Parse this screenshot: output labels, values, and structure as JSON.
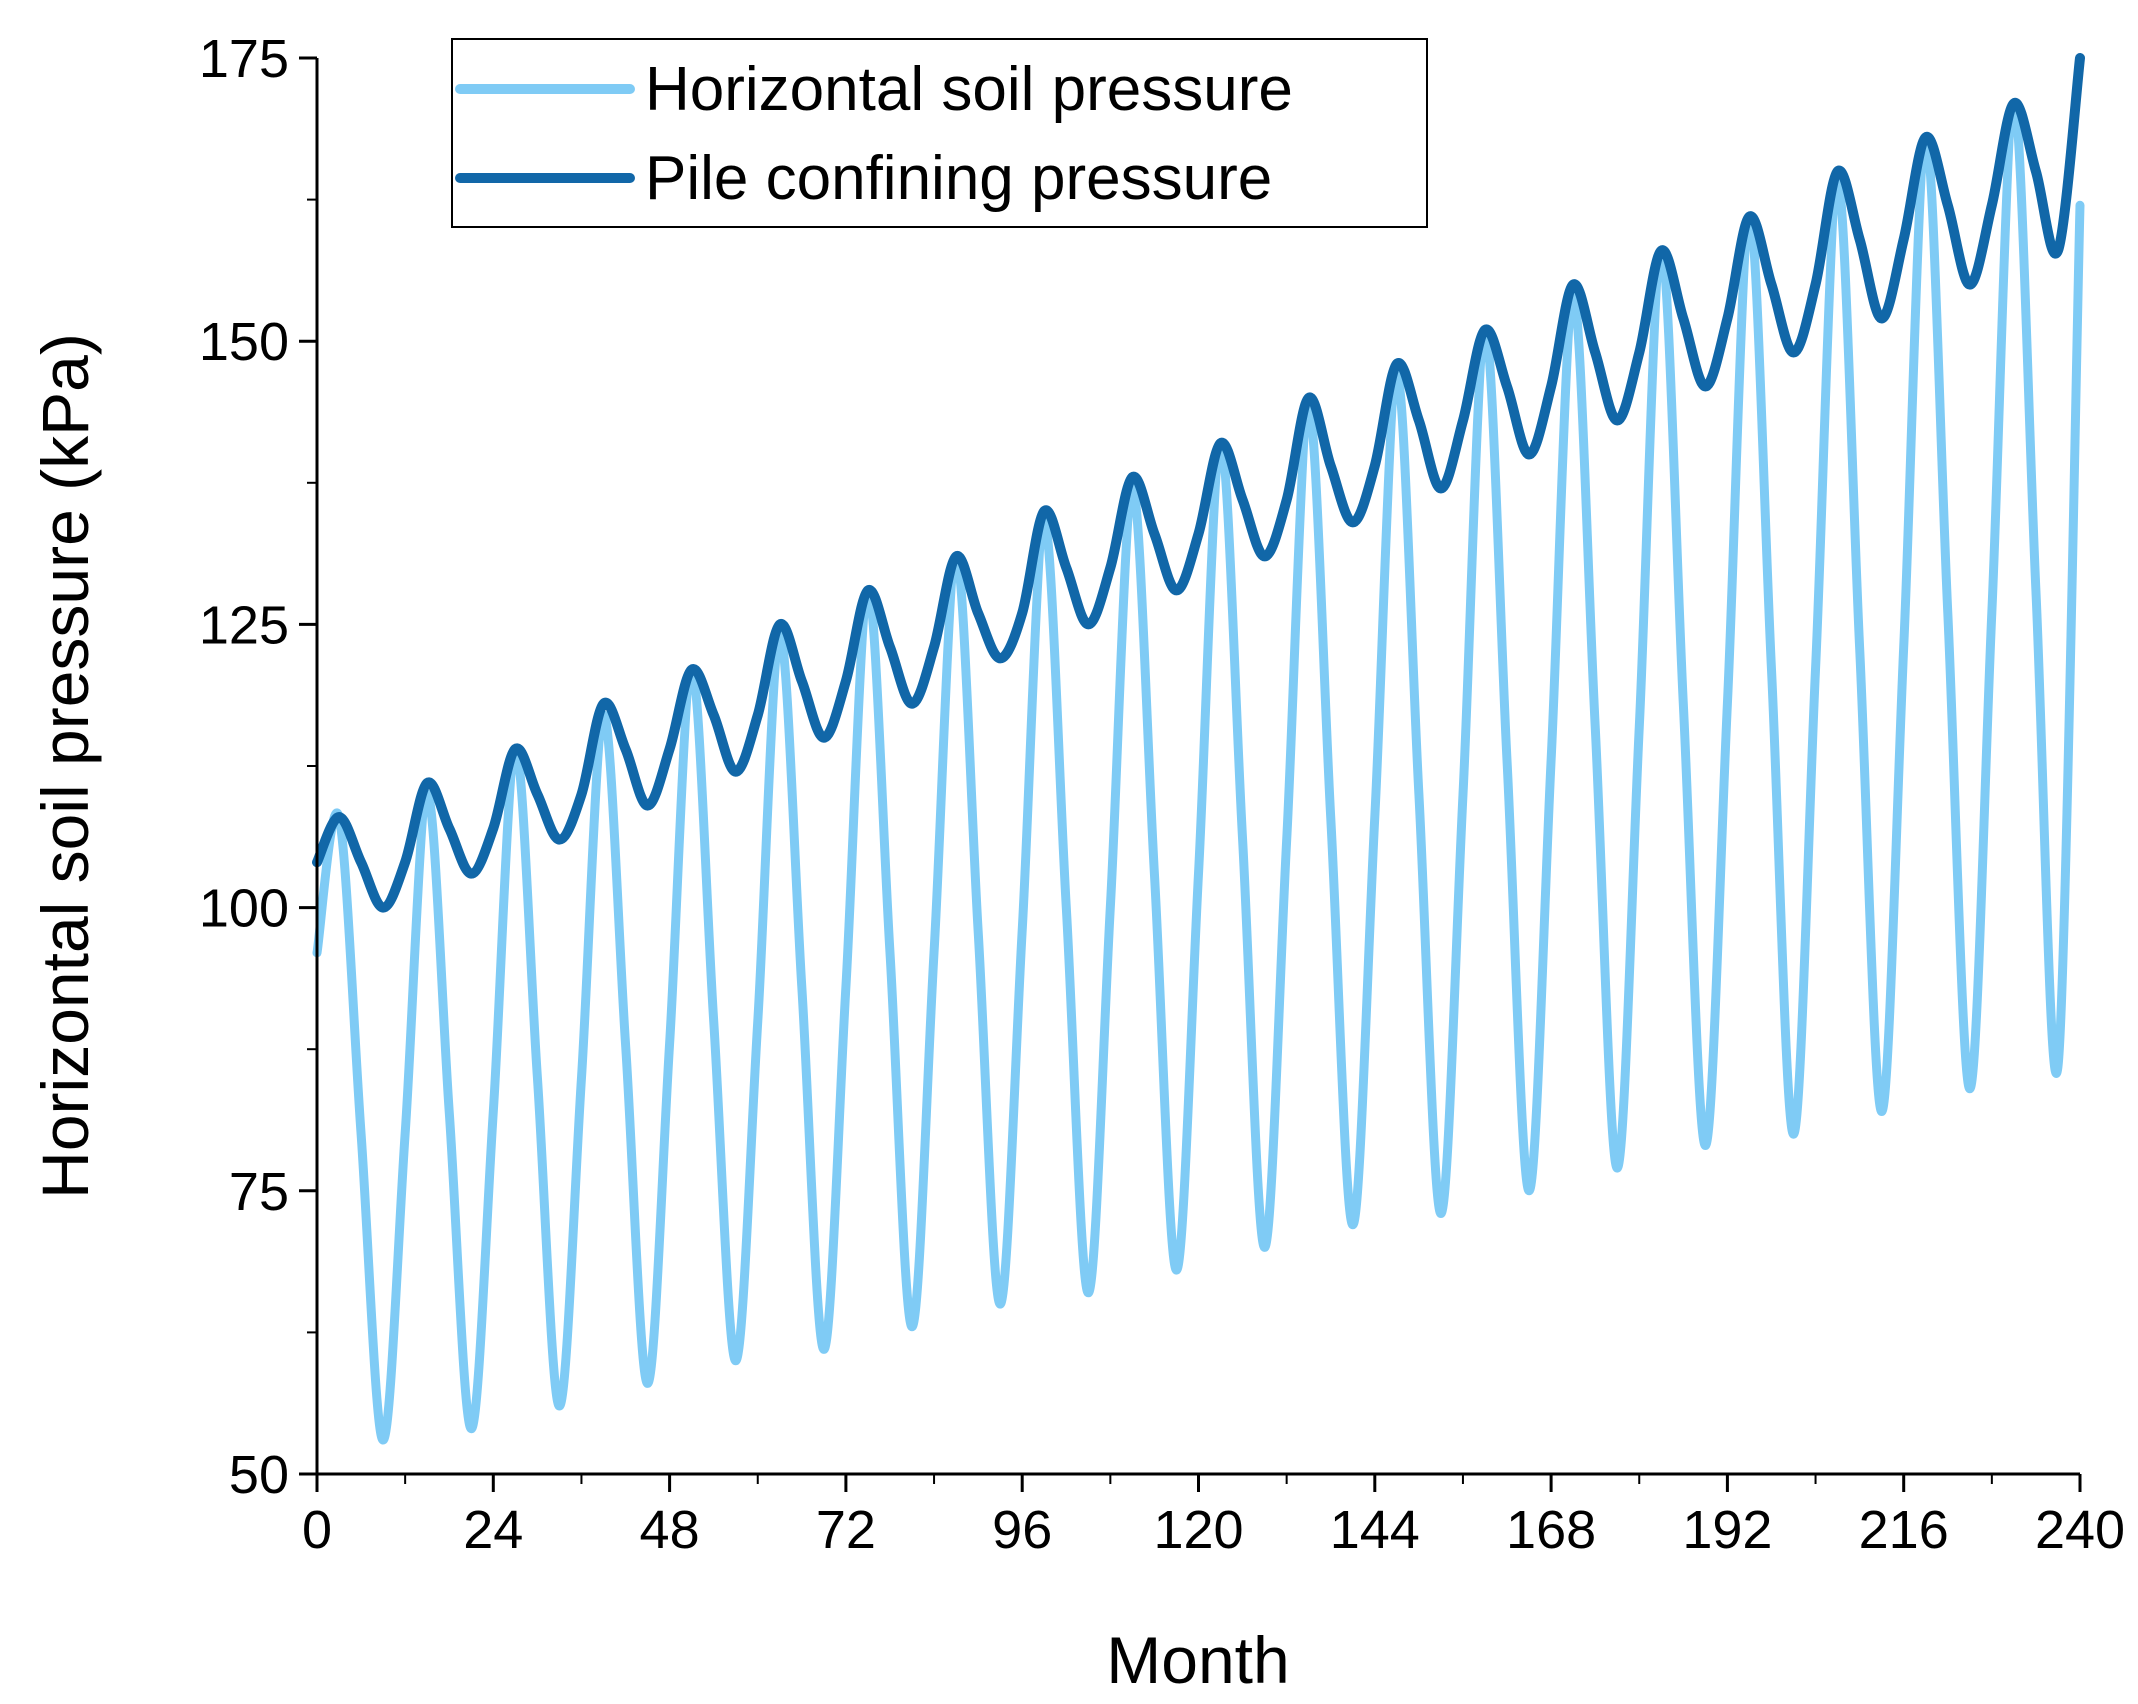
{
  "chart_data": {
    "type": "line",
    "title": "",
    "xlabel": "Month",
    "ylabel": "Horizontal soil pressure (kPa)",
    "xlim": [
      0,
      240
    ],
    "ylim": [
      50,
      175
    ],
    "x_ticks": [
      0,
      24,
      48,
      72,
      96,
      120,
      144,
      168,
      192,
      216,
      240
    ],
    "y_ticks": [
      50,
      75,
      100,
      125,
      150,
      175
    ],
    "x_tick_labels": [
      "0",
      "24",
      "48",
      "72",
      "96",
      "120",
      "144",
      "168",
      "192",
      "216",
      "240"
    ],
    "y_tick_labels": [
      "50",
      "75",
      "100",
      "125",
      "150",
      "175"
    ],
    "legend_position": "top-left",
    "grid": false,
    "series": [
      {
        "name": "Horizontal soil pressure",
        "color": "#7FCBF5",
        "x": [
          0,
          3,
          6,
          9,
          12,
          15,
          18,
          21,
          24,
          27,
          30,
          33,
          36,
          39,
          42,
          45,
          48,
          51,
          54,
          57,
          60,
          63,
          66,
          69,
          72,
          75,
          78,
          81,
          84,
          87,
          90,
          93,
          96,
          99,
          102,
          105,
          108,
          111,
          114,
          117,
          120,
          123,
          126,
          129,
          132,
          135,
          138,
          141,
          144,
          147,
          150,
          153,
          156,
          159,
          162,
          165,
          168,
          171,
          174,
          177,
          180,
          183,
          186,
          189,
          192,
          195,
          198,
          201,
          204,
          207,
          210,
          213,
          216,
          219,
          222,
          225,
          228,
          231,
          234,
          237,
          240
        ],
        "values": [
          96,
          108,
          80,
          53,
          80,
          110,
          82,
          54,
          82,
          114,
          85,
          56,
          85,
          117,
          88,
          58,
          88,
          121,
          90,
          60,
          90,
          124,
          93,
          61,
          93,
          128,
          96,
          63,
          96,
          131,
          98,
          65,
          98,
          134,
          100,
          66,
          100,
          137,
          103,
          68,
          103,
          141,
          106,
          70,
          106,
          144,
          108,
          72,
          108,
          147,
          110,
          73,
          110,
          151,
          113,
          75,
          113,
          154,
          116,
          77,
          116,
          158,
          118,
          79,
          118,
          161,
          121,
          80,
          121,
          164,
          123,
          82,
          123,
          168,
          126,
          84,
          126,
          171,
          128,
          86,
          162
        ]
      },
      {
        "name": "Pile confining pressure",
        "color": "#1167A8",
        "x": [
          0,
          3,
          6,
          9,
          12,
          15,
          18,
          21,
          24,
          27,
          30,
          33,
          36,
          39,
          42,
          45,
          48,
          51,
          54,
          57,
          60,
          63,
          66,
          69,
          72,
          75,
          78,
          81,
          84,
          87,
          90,
          93,
          96,
          99,
          102,
          105,
          108,
          111,
          114,
          117,
          120,
          123,
          126,
          129,
          132,
          135,
          138,
          141,
          144,
          147,
          150,
          153,
          156,
          159,
          162,
          165,
          168,
          171,
          174,
          177,
          180,
          183,
          186,
          189,
          192,
          195,
          198,
          201,
          204,
          207,
          210,
          213,
          216,
          219,
          222,
          225,
          228,
          231,
          234,
          237,
          240
        ],
        "values": [
          104,
          108,
          104,
          100,
          104,
          111,
          107,
          103,
          107,
          114,
          110,
          106,
          110,
          118,
          114,
          109,
          114,
          121,
          117,
          112,
          117,
          125,
          120,
          115,
          120,
          128,
          123,
          118,
          123,
          131,
          126,
          122,
          126,
          135,
          130,
          125,
          130,
          138,
          133,
          128,
          133,
          141,
          136,
          131,
          136,
          145,
          139,
          134,
          139,
          148,
          143,
          137,
          143,
          151,
          146,
          140,
          146,
          155,
          149,
          143,
          149,
          158,
          152,
          146,
          152,
          161,
          155,
          149,
          155,
          165,
          159,
          152,
          159,
          168,
          162,
          155,
          162,
          171,
          165,
          158,
          175
        ]
      }
    ]
  }
}
